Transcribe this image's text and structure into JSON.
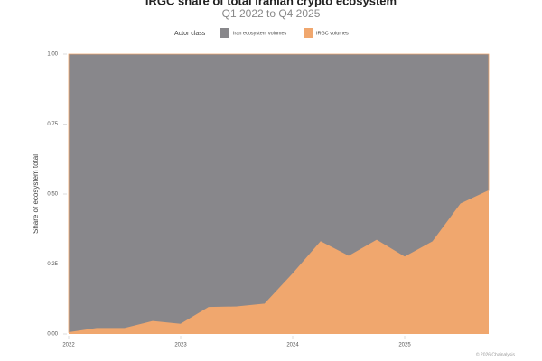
{
  "chart_data": {
    "type": "stacked_area",
    "title": "IRGC share of total Iranian crypto ecosystem",
    "subtitle": "Q1 2022 to Q4 2025",
    "legend_title": "Actor class",
    "y_label": "Share of ecosystem total",
    "credit": "© 2026 Chainalysis",
    "x": [
      2022,
      2022.25,
      2022.5,
      2022.75,
      2023,
      2023.25,
      2023.5,
      2023.75,
      2024,
      2024.25,
      2024.5,
      2024.75,
      2025,
      2025.25,
      2025.5,
      2025.75
    ],
    "xlim": [
      2022,
      2025.75
    ],
    "xticks": [
      2022,
      2023,
      2024,
      2025
    ],
    "ylim": [
      0,
      1
    ],
    "yticks": [
      {
        "value": 0,
        "label": "0.00"
      },
      {
        "value": 0.25,
        "label": "0.25"
      },
      {
        "value": 0.5,
        "label": "0.50"
      },
      {
        "value": 0.75,
        "label": "0.75"
      },
      {
        "value": 1,
        "label": "1.00"
      }
    ],
    "series": [
      {
        "name": "Iran ecosystem volumes",
        "color": "#88878b",
        "values": [
          0.995,
          0.98,
          0.98,
          0.955,
          0.965,
          0.905,
          0.903,
          0.893,
          0.785,
          0.67,
          0.722,
          0.665,
          0.725,
          0.67,
          0.535,
          0.488
        ]
      },
      {
        "name": "IRGC volumes",
        "color": "#f0a76e",
        "values": [
          0.005,
          0.02,
          0.02,
          0.045,
          0.035,
          0.095,
          0.097,
          0.107,
          0.215,
          0.33,
          0.278,
          0.335,
          0.275,
          0.33,
          0.465,
          0.512
        ]
      }
    ]
  }
}
